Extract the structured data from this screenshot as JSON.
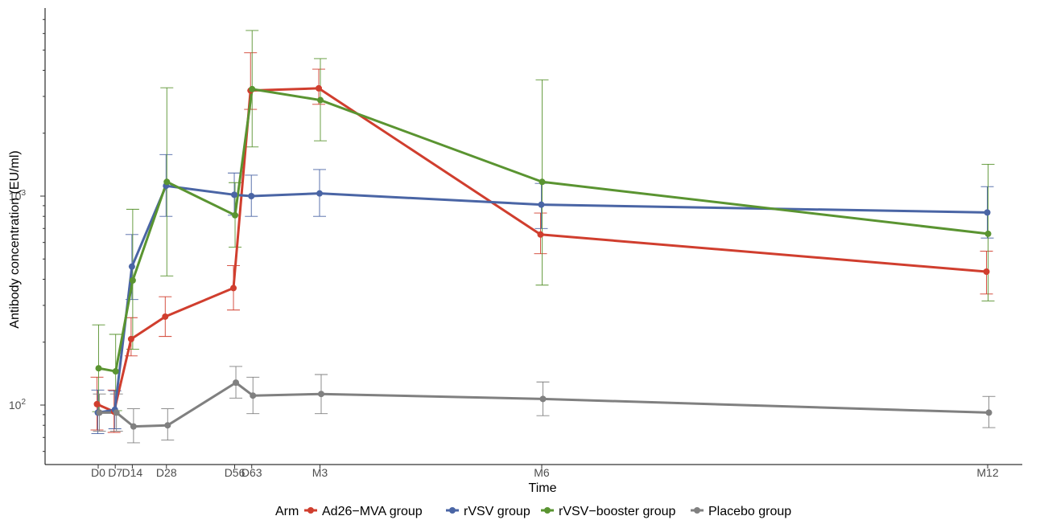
{
  "chart_data": {
    "type": "line",
    "title": "",
    "xlabel": "Time",
    "ylabel": "Antibody concentration (EU/ml)",
    "y_scale": "log10",
    "ylim": [
      55,
      9000
    ],
    "grid": false,
    "legend_position": "bottom",
    "legend_title": "Arm",
    "x_ticks": [
      "D0",
      "D7",
      "D14",
      "D28",
      "D56",
      "D63",
      "M3",
      "M6",
      "M12"
    ],
    "x_days": [
      0,
      7,
      14,
      28,
      56,
      63,
      91,
      182,
      365
    ],
    "y_ticks": [
      {
        "value": 100,
        "base": "10",
        "exp": "2"
      },
      {
        "value": 1000,
        "base": "10",
        "exp": "3"
      }
    ],
    "series": [
      {
        "name": "Ad26−MVA group",
        "color": "#d03e2e",
        "values": [
          101,
          93,
          207,
          265,
          363,
          3200,
          3280,
          655,
          435
        ],
        "lower": [
          76,
          74,
          172,
          213,
          285,
          2600,
          2750,
          530,
          340
        ],
        "upper": [
          136,
          118,
          262,
          330,
          465,
          4850,
          4050,
          830,
          545
        ]
      },
      {
        "name": "rVSV group",
        "color": "#4a65a5",
        "values": [
          92,
          95,
          460,
          1120,
          1015,
          1000,
          1030,
          910,
          835
        ],
        "lower": [
          73,
          77,
          320,
          800,
          810,
          800,
          800,
          700,
          630
        ],
        "upper": [
          118,
          117,
          655,
          1580,
          1290,
          1260,
          1340,
          1150,
          1110
        ]
      },
      {
        "name": "rVSV−booster group",
        "color": "#5a9431",
        "values": [
          150,
          145,
          395,
          1170,
          810,
          3250,
          2880,
          1170,
          660
        ],
        "lower": [
          93,
          94,
          185,
          415,
          570,
          1720,
          1840,
          375,
          315
        ],
        "upper": [
          242,
          218,
          865,
          3300,
          1160,
          6200,
          4550,
          3600,
          1420
        ]
      },
      {
        "name": "Placebo group",
        "color": "#808080",
        "values": [
          92,
          92,
          79,
          80,
          128,
          111,
          113,
          107,
          92
        ],
        "lower": [
          75,
          75,
          66,
          68,
          108,
          91,
          91,
          89,
          78
        ],
        "upper": [
          113,
          113,
          96,
          96,
          153,
          136,
          140,
          129,
          110
        ]
      }
    ]
  }
}
